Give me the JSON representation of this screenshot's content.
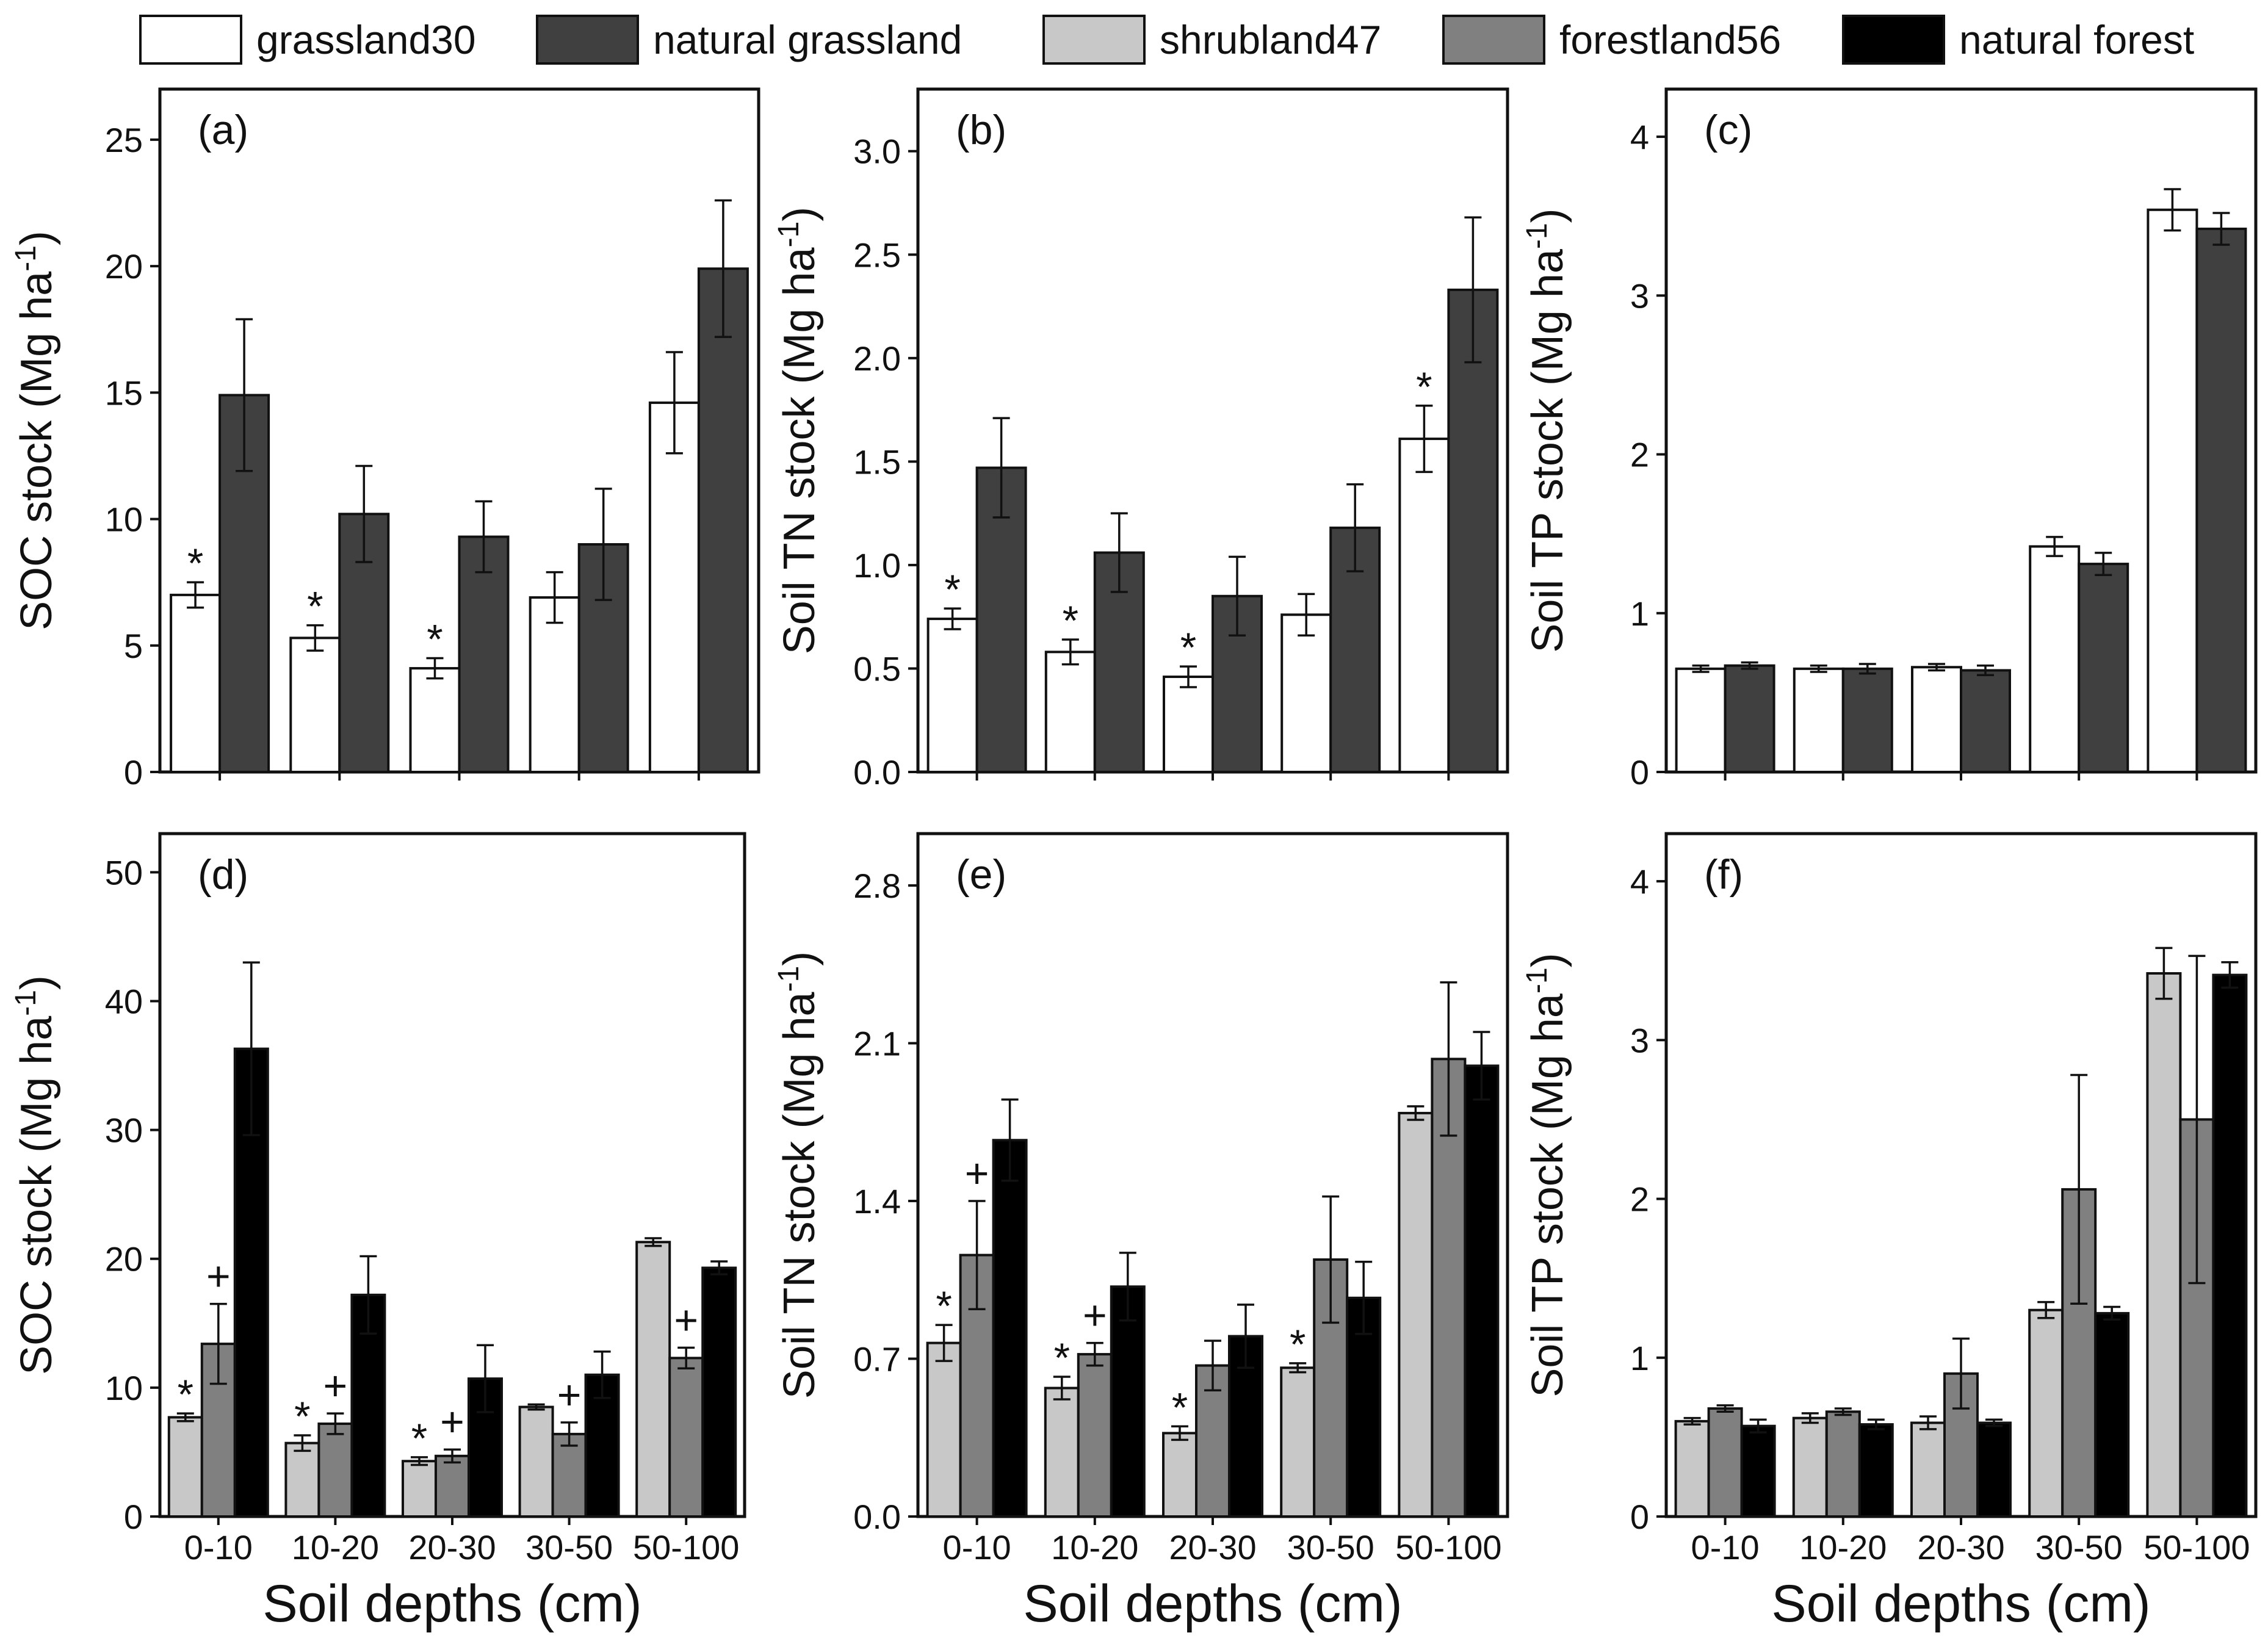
{
  "legend": [
    {
      "key": "grassland30",
      "label": "grassland30",
      "color": "#ffffff"
    },
    {
      "key": "natural_grassland",
      "label": "natural grassland",
      "color": "#404040"
    },
    {
      "key": "shrubland47",
      "label": "shrubland47",
      "color": "#c8c8c8"
    },
    {
      "key": "forestland56",
      "label": "forestland56",
      "color": "#808080"
    },
    {
      "key": "natural_forest",
      "label": "natural forest",
      "color": "#000000"
    }
  ],
  "xaxis_title": "Soil depths (cm)",
  "chart_data": [
    {
      "type": "bar",
      "panel": "(a)",
      "ylabel": "SOC stock (Mg ha-1)",
      "ylabel_main": "SOC stock (Mg ha",
      "ylabel_sup": "-1",
      "ylabel_end": ")",
      "ylim": [
        0,
        27
      ],
      "yticks": [
        0,
        5,
        10,
        15,
        20,
        25
      ],
      "ytick_labels": [
        "0",
        "5",
        "10",
        "15",
        "20",
        "25"
      ],
      "categories": [
        "0-10",
        "10-20",
        "20-30",
        "30-50",
        "50-100"
      ],
      "series": [
        {
          "name": "grassland30",
          "values": [
            7.0,
            5.3,
            4.1,
            6.9,
            14.6
          ],
          "errors": [
            0.5,
            0.5,
            0.4,
            1.0,
            2.0
          ]
        },
        {
          "name": "natural grassland",
          "values": [
            14.9,
            10.2,
            9.3,
            9.0,
            19.9
          ],
          "errors": [
            3.0,
            1.9,
            1.4,
            2.2,
            2.7
          ]
        }
      ],
      "annotations": [
        {
          "category": "0-10",
          "series": "grassland30",
          "text": "*"
        },
        {
          "category": "10-20",
          "series": "grassland30",
          "text": "*"
        },
        {
          "category": "20-30",
          "series": "grassland30",
          "text": "*"
        }
      ]
    },
    {
      "type": "bar",
      "panel": "(b)",
      "ylabel": "Soil TN stock (Mg ha-1)",
      "ylabel_main": "Soil TN stock (Mg ha",
      "ylabel_sup": "-1",
      "ylabel_end": ")",
      "ylim": [
        0,
        3.3
      ],
      "yticks": [
        0,
        0.5,
        1.0,
        1.5,
        2.0,
        2.5,
        3.0
      ],
      "ytick_labels": [
        "0.0",
        "0.5",
        "1.0",
        "1.5",
        "2.0",
        "2.5",
        "3.0"
      ],
      "categories": [
        "0-10",
        "10-20",
        "20-30",
        "30-50",
        "50-100"
      ],
      "series": [
        {
          "name": "grassland30",
          "values": [
            0.74,
            0.58,
            0.46,
            0.76,
            1.61
          ],
          "errors": [
            0.05,
            0.06,
            0.05,
            0.1,
            0.16
          ]
        },
        {
          "name": "natural grassland",
          "values": [
            1.47,
            1.06,
            0.85,
            1.18,
            2.33
          ],
          "errors": [
            0.24,
            0.19,
            0.19,
            0.21,
            0.35
          ]
        }
      ],
      "annotations": [
        {
          "category": "0-10",
          "series": "grassland30",
          "text": "*"
        },
        {
          "category": "10-20",
          "series": "grassland30",
          "text": "*"
        },
        {
          "category": "20-30",
          "series": "grassland30",
          "text": "*"
        },
        {
          "category": "50-100",
          "series": "grassland30",
          "text": "*"
        }
      ]
    },
    {
      "type": "bar",
      "panel": "(c)",
      "ylabel": "Soil TP stock (Mg ha-1)",
      "ylabel_main": "Soil TP stock (Mg ha",
      "ylabel_sup": "-1",
      "ylabel_end": ")",
      "ylim": [
        0,
        4.3
      ],
      "yticks": [
        0,
        1,
        2,
        3,
        4
      ],
      "ytick_labels": [
        "0",
        "1",
        "2",
        "3",
        "4"
      ],
      "categories": [
        "0-10",
        "10-20",
        "20-30",
        "30-50",
        "50-100"
      ],
      "series": [
        {
          "name": "grassland30",
          "values": [
            0.65,
            0.65,
            0.66,
            1.42,
            3.54
          ],
          "errors": [
            0.02,
            0.02,
            0.02,
            0.06,
            0.13
          ]
        },
        {
          "name": "natural grassland",
          "values": [
            0.67,
            0.65,
            0.64,
            1.31,
            3.42
          ],
          "errors": [
            0.02,
            0.03,
            0.03,
            0.07,
            0.1
          ]
        }
      ],
      "annotations": []
    },
    {
      "type": "bar",
      "panel": "(d)",
      "ylabel": "SOC stock (Mg ha-1)",
      "ylabel_main": "SOC stock (Mg ha",
      "ylabel_sup": "-1",
      "ylabel_end": ")",
      "ylim": [
        0,
        53
      ],
      "yticks": [
        0,
        10,
        20,
        30,
        40,
        50
      ],
      "ytick_labels": [
        "0",
        "10",
        "20",
        "30",
        "40",
        "50"
      ],
      "categories": [
        "0-10",
        "10-20",
        "20-30",
        "30-50",
        "50-100"
      ],
      "series": [
        {
          "name": "shrubland47",
          "values": [
            7.7,
            5.7,
            4.3,
            8.5,
            21.3
          ],
          "errors": [
            0.3,
            0.6,
            0.3,
            0.2,
            0.3
          ]
        },
        {
          "name": "forestland56",
          "values": [
            13.4,
            7.2,
            4.7,
            6.4,
            12.3
          ],
          "errors": [
            3.1,
            0.8,
            0.5,
            0.9,
            0.8
          ]
        },
        {
          "name": "natural forest",
          "values": [
            36.3,
            17.2,
            10.7,
            11.0,
            19.3
          ],
          "errors": [
            6.7,
            3.0,
            2.6,
            1.8,
            0.5
          ]
        }
      ],
      "annotations": [
        {
          "category": "0-10",
          "series": "shrubland47",
          "text": "*"
        },
        {
          "category": "0-10",
          "series": "forestland56",
          "text": "+"
        },
        {
          "category": "10-20",
          "series": "shrubland47",
          "text": "*"
        },
        {
          "category": "10-20",
          "series": "forestland56",
          "text": "+"
        },
        {
          "category": "20-30",
          "series": "shrubland47",
          "text": "*"
        },
        {
          "category": "20-30",
          "series": "forestland56",
          "text": "+"
        },
        {
          "category": "30-50",
          "series": "forestland56",
          "text": "+"
        },
        {
          "category": "50-100",
          "series": "forestland56",
          "text": "+"
        }
      ]
    },
    {
      "type": "bar",
      "panel": "(e)",
      "ylabel": "Soil TN stock (Mg ha-1)",
      "ylabel_main": "Soil TN stock (Mg ha",
      "ylabel_sup": "-1",
      "ylabel_end": ")",
      "ylim": [
        0,
        3.03
      ],
      "yticks": [
        0,
        0.7,
        1.4,
        2.1,
        2.8
      ],
      "ytick_labels": [
        "0.0",
        "0.7",
        "1.4",
        "2.1",
        "2.8"
      ],
      "categories": [
        "0-10",
        "10-20",
        "20-30",
        "30-50",
        "50-100"
      ],
      "series": [
        {
          "name": "shrubland47",
          "values": [
            0.77,
            0.57,
            0.37,
            0.66,
            1.79
          ],
          "errors": [
            0.08,
            0.05,
            0.03,
            0.02,
            0.03
          ]
        },
        {
          "name": "forestland56",
          "values": [
            1.16,
            0.72,
            0.67,
            1.14,
            2.03
          ],
          "errors": [
            0.24,
            0.05,
            0.11,
            0.28,
            0.34
          ]
        },
        {
          "name": "natural forest",
          "values": [
            1.67,
            1.02,
            0.8,
            0.97,
            2.0
          ],
          "errors": [
            0.18,
            0.15,
            0.14,
            0.16,
            0.15
          ]
        }
      ],
      "annotations": [
        {
          "category": "0-10",
          "series": "shrubland47",
          "text": "*"
        },
        {
          "category": "0-10",
          "series": "forestland56",
          "text": "+"
        },
        {
          "category": "10-20",
          "series": "shrubland47",
          "text": "*"
        },
        {
          "category": "10-20",
          "series": "forestland56",
          "text": "+"
        },
        {
          "category": "20-30",
          "series": "shrubland47",
          "text": "*"
        },
        {
          "category": "30-50",
          "series": "shrubland47",
          "text": "*"
        }
      ]
    },
    {
      "type": "bar",
      "panel": "(f)",
      "ylabel": "Soil TP stock (Mg ha-1)",
      "ylabel_main": "Soil TP stock (Mg ha",
      "ylabel_sup": "-1",
      "ylabel_end": ")",
      "ylim": [
        0,
        4.3
      ],
      "yticks": [
        0,
        1,
        2,
        3,
        4
      ],
      "ytick_labels": [
        "0",
        "1",
        "2",
        "3",
        "4"
      ],
      "categories": [
        "0-10",
        "10-20",
        "20-30",
        "30-50",
        "50-100"
      ],
      "series": [
        {
          "name": "shrubland47",
          "values": [
            0.6,
            0.62,
            0.59,
            1.3,
            3.42
          ],
          "errors": [
            0.02,
            0.03,
            0.04,
            0.05,
            0.16
          ]
        },
        {
          "name": "forestland56",
          "values": [
            0.68,
            0.66,
            0.9,
            2.06,
            2.5
          ],
          "errors": [
            0.02,
            0.02,
            0.22,
            0.72,
            1.03
          ]
        },
        {
          "name": "natural forest",
          "values": [
            0.57,
            0.58,
            0.59,
            1.28,
            3.41
          ],
          "errors": [
            0.04,
            0.03,
            0.02,
            0.04,
            0.08
          ]
        }
      ],
      "annotations": []
    }
  ]
}
